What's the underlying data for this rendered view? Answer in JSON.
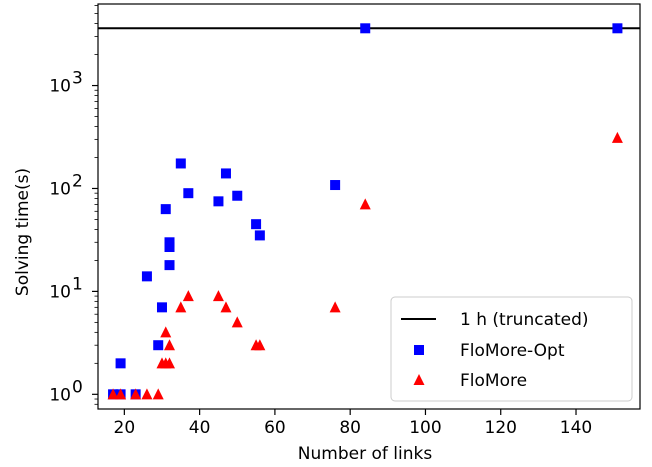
{
  "chart_data": {
    "type": "scatter",
    "title": "",
    "xlabel": "Number of links",
    "ylabel": "Solving time(s)",
    "xlim": [
      13,
      157
    ],
    "ylim": [
      0.72,
      6200
    ],
    "yscale": "log",
    "grid": false,
    "legend_position": "lower-right",
    "x_ticks": [
      {
        "value": 20,
        "label": "20"
      },
      {
        "value": 40,
        "label": "40"
      },
      {
        "value": 60,
        "label": "60"
      },
      {
        "value": 80,
        "label": "80"
      },
      {
        "value": 100,
        "label": "100"
      },
      {
        "value": 120,
        "label": "120"
      },
      {
        "value": 140,
        "label": "140"
      }
    ],
    "y_ticks": [
      {
        "value": 1,
        "base": "10",
        "exp": "0"
      },
      {
        "value": 10,
        "base": "10",
        "exp": "1"
      },
      {
        "value": 100,
        "base": "10",
        "exp": "2"
      },
      {
        "value": 1000,
        "base": "10",
        "exp": "3"
      }
    ],
    "reference_line": {
      "name": "1 h (truncated)",
      "y": 3600,
      "color": "#000000"
    },
    "series": [
      {
        "name": "FloMore-Opt",
        "marker": "square",
        "color": "#0000ff",
        "points": [
          {
            "x": 17,
            "y": 1
          },
          {
            "x": 19,
            "y": 2
          },
          {
            "x": 19,
            "y": 1
          },
          {
            "x": 23,
            "y": 1
          },
          {
            "x": 26,
            "y": 14
          },
          {
            "x": 29,
            "y": 3
          },
          {
            "x": 30,
            "y": 7
          },
          {
            "x": 31,
            "y": 63
          },
          {
            "x": 32,
            "y": 30
          },
          {
            "x": 32,
            "y": 27
          },
          {
            "x": 32,
            "y": 18
          },
          {
            "x": 35,
            "y": 175
          },
          {
            "x": 37,
            "y": 90
          },
          {
            "x": 45,
            "y": 75
          },
          {
            "x": 47,
            "y": 140
          },
          {
            "x": 50,
            "y": 85
          },
          {
            "x": 55,
            "y": 45
          },
          {
            "x": 56,
            "y": 35
          },
          {
            "x": 76,
            "y": 108
          },
          {
            "x": 84,
            "y": 3600
          },
          {
            "x": 151,
            "y": 3600
          }
        ]
      },
      {
        "name": "FloMore",
        "marker": "triangle",
        "color": "#ff0000",
        "points": [
          {
            "x": 17,
            "y": 1
          },
          {
            "x": 19,
            "y": 1
          },
          {
            "x": 23,
            "y": 1
          },
          {
            "x": 26,
            "y": 1
          },
          {
            "x": 29,
            "y": 1
          },
          {
            "x": 30,
            "y": 2
          },
          {
            "x": 31,
            "y": 4
          },
          {
            "x": 31,
            "y": 2
          },
          {
            "x": 32,
            "y": 3
          },
          {
            "x": 32,
            "y": 2
          },
          {
            "x": 35,
            "y": 7
          },
          {
            "x": 37,
            "y": 9
          },
          {
            "x": 45,
            "y": 9
          },
          {
            "x": 47,
            "y": 7
          },
          {
            "x": 50,
            "y": 5
          },
          {
            "x": 55,
            "y": 3
          },
          {
            "x": 56,
            "y": 3
          },
          {
            "x": 76,
            "y": 7
          },
          {
            "x": 84,
            "y": 70
          },
          {
            "x": 151,
            "y": 310
          }
        ]
      }
    ]
  }
}
